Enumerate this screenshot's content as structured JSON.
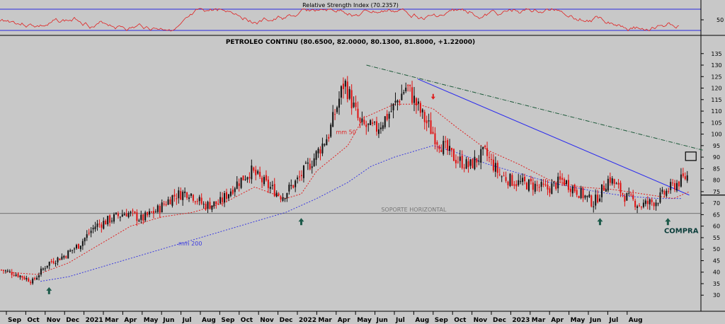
{
  "rsi": {
    "title": "Relative Strength Index (70.2357)",
    "value": 70.2357,
    "tick_label": "50",
    "upper_level": 70,
    "lower_level": 30,
    "ylim": [
      20,
      80
    ]
  },
  "chart_data": {
    "type": "candlestick",
    "title": "PETROLEO CONTINU (80.6500, 82.0000, 80.1300, 81.8000, +1.22000)",
    "last_bar": {
      "open": 80.65,
      "high": 82.0,
      "low": 80.13,
      "close": 81.8,
      "change": 1.22
    },
    "ylim": [
      23,
      138
    ],
    "y_ticks": [
      30,
      35,
      40,
      45,
      50,
      55,
      60,
      65,
      70,
      75,
      80,
      85,
      90,
      95,
      100,
      105,
      110,
      115,
      120,
      125,
      130,
      135
    ],
    "x_ticks": [
      "Sep",
      "Oct",
      "Nov",
      "Dec",
      "2021",
      "Mar",
      "Apr",
      "May",
      "Jun",
      "Jul",
      "Aug",
      "Sep",
      "Oct",
      "Nov",
      "Dec",
      "2022",
      "Mar",
      "Apr",
      "May",
      "Jun",
      "Jul",
      "Aug",
      "Sep",
      "Oct",
      "Nov",
      "Dec",
      "2023",
      "Mar",
      "Apr",
      "May",
      "Jun",
      "Jul",
      "Aug"
    ],
    "x_range_months": [
      0,
      35.5
    ],
    "price_path": [
      [
        0,
        41
      ],
      [
        1,
        39
      ],
      [
        2,
        36
      ],
      [
        3,
        44
      ],
      [
        4,
        47
      ],
      [
        5,
        52
      ],
      [
        6,
        60
      ],
      [
        7,
        63
      ],
      [
        8,
        66
      ],
      [
        9,
        63
      ],
      [
        10,
        67
      ],
      [
        11,
        73
      ],
      [
        12,
        75
      ],
      [
        13,
        69
      ],
      [
        14,
        70
      ],
      [
        15,
        78
      ],
      [
        16,
        84
      ],
      [
        17,
        78
      ],
      [
        18,
        73
      ],
      [
        19,
        80
      ],
      [
        20,
        89
      ],
      [
        21,
        100
      ],
      [
        22,
        123
      ],
      [
        23,
        104
      ],
      [
        24,
        102
      ],
      [
        25,
        110
      ],
      [
        26,
        121
      ],
      [
        27,
        108
      ],
      [
        28,
        97
      ],
      [
        29,
        90
      ],
      [
        30,
        86
      ],
      [
        31,
        92
      ],
      [
        32,
        82
      ],
      [
        33,
        79
      ],
      [
        34,
        78
      ],
      [
        35,
        76
      ],
      [
        36,
        80
      ],
      [
        37,
        75
      ],
      [
        38,
        70
      ],
      [
        39,
        81
      ],
      [
        40,
        73
      ],
      [
        41,
        69
      ],
      [
        42,
        71
      ],
      [
        43,
        77
      ],
      [
        44,
        81.8
      ]
    ],
    "series": [
      {
        "name": "mm 200",
        "values": [
          [
            2.2,
            36
          ],
          [
            4,
            38
          ],
          [
            6,
            42
          ],
          [
            8,
            46
          ],
          [
            10,
            50
          ],
          [
            12,
            54
          ],
          [
            14,
            58
          ],
          [
            16,
            62
          ],
          [
            18,
            66
          ],
          [
            20,
            72
          ],
          [
            22,
            79
          ],
          [
            23.5,
            86
          ],
          [
            25,
            90
          ],
          [
            26.5,
            93
          ],
          [
            27.5,
            95
          ],
          [
            29,
            92
          ],
          [
            31,
            87
          ],
          [
            33,
            83
          ],
          [
            35,
            79
          ],
          [
            36.5,
            77
          ],
          [
            38,
            75
          ],
          [
            40,
            73
          ],
          [
            42,
            72
          ],
          [
            43.5,
            72
          ]
        ],
        "color": "#3a3ae0"
      },
      {
        "name": "mm 50",
        "values": [
          [
            0,
            40
          ],
          [
            2,
            39
          ],
          [
            4,
            44
          ],
          [
            6,
            52
          ],
          [
            8,
            60
          ],
          [
            10,
            64
          ],
          [
            12,
            66
          ],
          [
            14,
            70
          ],
          [
            16,
            77
          ],
          [
            18,
            72
          ],
          [
            19,
            74
          ],
          [
            20,
            84
          ],
          [
            22,
            95
          ],
          [
            23,
            107
          ],
          [
            25,
            113
          ],
          [
            26.5,
            113
          ],
          [
            27.5,
            111
          ],
          [
            29,
            103
          ],
          [
            31,
            93
          ],
          [
            33,
            87
          ],
          [
            35,
            80
          ],
          [
            37,
            77
          ],
          [
            39,
            76
          ],
          [
            41,
            74
          ],
          [
            43,
            72
          ],
          [
            44,
            75
          ]
        ],
        "color": "#e02020"
      }
    ],
    "horizontal_lines": [
      {
        "label": "SOPORTE HORIZONTAL",
        "value": 65.5,
        "color": "#555555"
      },
      {
        "label": "",
        "value": 73.5,
        "color": "#000000"
      }
    ],
    "trendlines": [
      {
        "color": "#2a2aee",
        "points": [
          [
            26.5,
            124
          ],
          [
            44,
            73.5
          ]
        ]
      },
      {
        "color": "#1d5a3a",
        "points": [
          [
            23.2,
            130
          ],
          [
            44.9,
            93
          ]
        ]
      }
    ],
    "annotations": [
      {
        "label": "COMPRA",
        "x": 44,
        "y": 65
      },
      {
        "label": "",
        "x": 44,
        "y": 83
      }
    ],
    "arrows": [
      {
        "direction": "up",
        "x_month": 2.2,
        "y_value": 33.5,
        "color": "#1d5a4a"
      },
      {
        "direction": "up",
        "x_month": 15.2,
        "y_value": 63.5,
        "color": "#1d5a4a"
      },
      {
        "direction": "up",
        "x_month": 30.6,
        "y_value": 63.5,
        "color": "#1d5a4a"
      },
      {
        "direction": "up",
        "x_month": 34.1,
        "y_value": 63.5,
        "color": "#1d5a4a"
      },
      {
        "direction": "down",
        "x_month": 22.0,
        "y_value": 115,
        "color": "#e02020"
      }
    ],
    "grid": false
  }
}
